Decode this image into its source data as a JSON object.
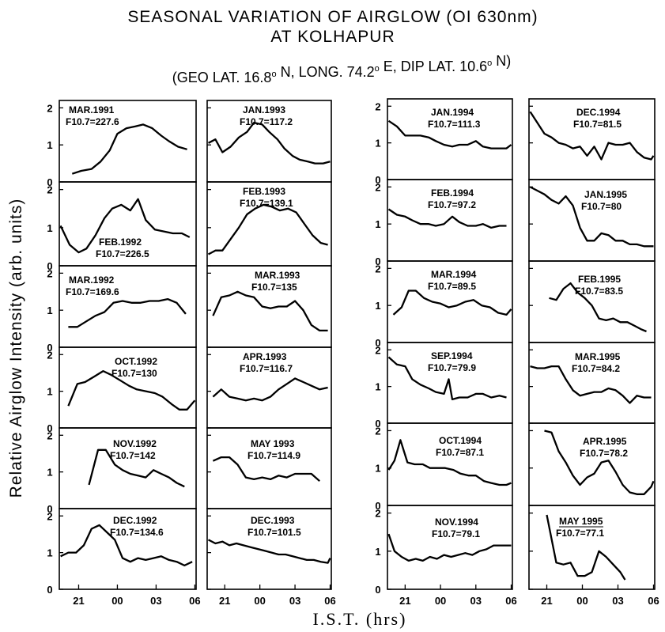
{
  "chart_data": {
    "type": "line",
    "title": "SEASONAL VARIATION OF AIRGLOW (OI 630nm)",
    "title_line2": "AT KOLHAPUR",
    "subtitle_text": "(GEO LAT. 16.8",
    "subtitle_parts": [
      "(GEO LAT. 16.8",
      "o",
      " N,  LONG. 74.2",
      "o",
      " E, DIP LAT. 10.6",
      "o",
      " N)"
    ],
    "ylabel": "Relative Airglow Intensity (arb. units)",
    "xlabel": "I.S.T. (hrs)",
    "ylim": [
      0,
      2.2
    ],
    "xlim_hours_after_18": [
      1.5,
      12.1
    ],
    "x_ticks": [
      "21",
      "00",
      "03",
      "06"
    ],
    "y_ticks": [
      "0",
      "1",
      "2"
    ],
    "grid": false,
    "panels": [
      {
        "col": 0,
        "row": 0,
        "label1": "MAR.1991",
        "label2": "F10.7=227.6",
        "x": [
          2.5,
          3.2,
          4.0,
          4.7,
          5.4,
          6.0,
          6.7,
          7.4,
          8.0,
          8.7,
          9.4,
          10.0,
          10.7,
          11.4
        ],
        "y": [
          0.22,
          0.3,
          0.35,
          0.55,
          0.85,
          1.3,
          1.45,
          1.5,
          1.55,
          1.45,
          1.25,
          1.1,
          0.95,
          0.88
        ]
      },
      {
        "col": 0,
        "row": 1,
        "label1": "FEB.1992",
        "label2": "F10.7=226.5",
        "x": [
          1.6,
          2.3,
          3.0,
          3.6,
          4.3,
          5.0,
          5.6,
          6.3,
          7.0,
          7.6,
          8.2,
          8.9,
          9.6,
          10.3,
          11.0,
          11.6
        ],
        "y": [
          1.05,
          0.55,
          0.35,
          0.45,
          0.8,
          1.25,
          1.5,
          1.6,
          1.45,
          1.75,
          1.2,
          0.95,
          0.9,
          0.85,
          0.85,
          0.75
        ]
      },
      {
        "col": 0,
        "row": 2,
        "label1": "MAR.1992",
        "label2": "F10.7=169.6",
        "x": [
          2.2,
          2.9,
          3.6,
          4.3,
          5.0,
          5.7,
          6.4,
          7.1,
          7.8,
          8.5,
          9.2,
          9.9,
          10.6,
          11.3
        ],
        "y": [
          0.55,
          0.55,
          0.7,
          0.85,
          0.95,
          1.2,
          1.25,
          1.2,
          1.2,
          1.25,
          1.25,
          1.3,
          1.2,
          0.9
        ]
      },
      {
        "col": 0,
        "row": 3,
        "label1": "OCT.1992",
        "label2": "F10.7=130",
        "x": [
          2.2,
          2.9,
          3.5,
          4.2,
          4.9,
          5.5,
          6.2,
          6.9,
          7.5,
          8.2,
          8.9,
          9.5,
          10.2,
          10.8,
          11.4,
          12.0
        ],
        "y": [
          0.6,
          1.2,
          1.25,
          1.4,
          1.55,
          1.45,
          1.3,
          1.15,
          1.05,
          1.0,
          0.95,
          0.85,
          0.65,
          0.5,
          0.5,
          0.75
        ]
      },
      {
        "col": 0,
        "row": 4,
        "label1": "NOV.1992",
        "label2": "F10.7=142",
        "x": [
          3.8,
          4.5,
          5.1,
          5.8,
          6.4,
          7.0,
          7.6,
          8.2,
          8.8,
          9.4,
          10.0,
          10.6,
          11.2
        ],
        "y": [
          0.65,
          1.6,
          1.6,
          1.2,
          1.05,
          0.95,
          0.9,
          0.85,
          1.05,
          0.95,
          0.85,
          0.7,
          0.6
        ]
      },
      {
        "col": 0,
        "row": 5,
        "label1": "DEC.1992",
        "label2": "F10.7=134.6",
        "x": [
          1.6,
          2.2,
          2.8,
          3.4,
          4.0,
          4.6,
          5.2,
          5.8,
          6.4,
          7.0,
          7.6,
          8.2,
          8.8,
          9.4,
          10.0,
          10.6,
          11.2,
          11.8
        ],
        "y": [
          0.9,
          1.0,
          1.0,
          1.2,
          1.65,
          1.75,
          1.55,
          1.35,
          0.85,
          0.75,
          0.85,
          0.8,
          0.85,
          0.9,
          0.8,
          0.75,
          0.65,
          0.75
        ]
      },
      {
        "col": 1,
        "row": 0,
        "label1": "JAN.1993",
        "label2": "F10.7=117.2",
        "x": [
          1.6,
          2.2,
          2.8,
          3.5,
          4.2,
          4.9,
          5.5,
          6.2,
          6.8,
          7.5,
          8.1,
          8.8,
          9.4,
          10.1,
          10.7,
          11.4,
          12.0
        ],
        "y": [
          1.05,
          1.15,
          0.8,
          0.95,
          1.2,
          1.35,
          1.6,
          1.55,
          1.35,
          1.15,
          0.9,
          0.7,
          0.6,
          0.55,
          0.5,
          0.5,
          0.55
        ]
      },
      {
        "col": 1,
        "row": 1,
        "label1": "FEB.1993",
        "label2": "F10.7=139.1",
        "x": [
          1.6,
          2.2,
          2.8,
          3.5,
          4.2,
          4.9,
          5.6,
          6.3,
          7.0,
          7.7,
          8.4,
          9.1,
          9.8,
          10.5,
          11.2,
          11.8
        ],
        "y": [
          0.3,
          0.4,
          0.4,
          0.7,
          1.0,
          1.35,
          1.5,
          1.6,
          1.55,
          1.45,
          1.5,
          1.4,
          1.1,
          0.8,
          0.6,
          0.55
        ]
      },
      {
        "col": 1,
        "row": 2,
        "label1": "MAR.1993",
        "label2": "F10.7=135",
        "x": [
          2.0,
          2.7,
          3.4,
          4.1,
          4.8,
          5.5,
          6.2,
          6.9,
          7.6,
          8.3,
          9.0,
          9.7,
          10.4,
          11.1,
          11.8
        ],
        "y": [
          0.85,
          1.35,
          1.4,
          1.5,
          1.4,
          1.35,
          1.1,
          1.05,
          1.1,
          1.1,
          1.25,
          1.0,
          0.6,
          0.45,
          0.45
        ]
      },
      {
        "col": 1,
        "row": 3,
        "label1": "APR.1993",
        "label2": "F10.7=116.7",
        "x": [
          2.0,
          2.7,
          3.4,
          4.1,
          4.8,
          5.5,
          6.2,
          6.9,
          7.6,
          8.3,
          9.0,
          9.7,
          10.4,
          11.1,
          11.8
        ],
        "y": [
          0.85,
          1.05,
          0.85,
          0.8,
          0.75,
          0.8,
          0.75,
          0.85,
          1.05,
          1.2,
          1.35,
          1.25,
          1.15,
          1.05,
          1.1
        ]
      },
      {
        "col": 1,
        "row": 4,
        "label1": "MAY 1993",
        "label2": "F10.7=114.9",
        "x": [
          2.0,
          2.7,
          3.4,
          4.1,
          4.8,
          5.5,
          6.2,
          6.9,
          7.6,
          8.3,
          9.0,
          9.7,
          10.4,
          11.1
        ],
        "y": [
          1.3,
          1.4,
          1.4,
          1.2,
          0.85,
          0.8,
          0.85,
          0.8,
          0.9,
          0.85,
          0.95,
          0.95,
          0.95,
          0.75
        ]
      },
      {
        "col": 1,
        "row": 5,
        "label1": "DEC.1993",
        "label2": "F10.7=101.5",
        "x": [
          1.6,
          2.2,
          2.8,
          3.4,
          4.0,
          4.6,
          5.2,
          5.8,
          6.4,
          7.0,
          7.6,
          8.2,
          8.8,
          9.4,
          10.0,
          10.6,
          11.2,
          11.8,
          12.0
        ],
        "y": [
          1.35,
          1.25,
          1.3,
          1.2,
          1.25,
          1.2,
          1.15,
          1.1,
          1.05,
          1.0,
          0.95,
          0.95,
          0.9,
          0.85,
          0.8,
          0.8,
          0.75,
          0.72,
          0.85
        ]
      },
      {
        "col": 2,
        "row": 0,
        "label1": "JAN.1994",
        "label2": "F10.7=111.3",
        "x": [
          1.6,
          2.3,
          3.0,
          3.6,
          4.3,
          5.0,
          5.6,
          6.3,
          7.0,
          7.6,
          8.3,
          9.0,
          9.6,
          10.3,
          11.0,
          11.6,
          12.0
        ],
        "y": [
          1.6,
          1.45,
          1.2,
          1.2,
          1.2,
          1.15,
          1.05,
          0.95,
          0.9,
          0.95,
          0.95,
          1.05,
          0.9,
          0.85,
          0.85,
          0.85,
          0.95
        ]
      },
      {
        "col": 2,
        "row": 1,
        "label1": "FEB.1994",
        "label2": "F10.7=97.2",
        "x": [
          1.6,
          2.3,
          3.0,
          3.6,
          4.3,
          5.0,
          5.6,
          6.3,
          7.0,
          7.6,
          8.3,
          9.0,
          9.6,
          10.3,
          11.0,
          11.6
        ],
        "y": [
          1.4,
          1.25,
          1.2,
          1.1,
          1.0,
          1.0,
          0.95,
          1.0,
          1.2,
          1.05,
          0.95,
          0.95,
          1.0,
          0.9,
          0.95,
          0.95
        ]
      },
      {
        "col": 2,
        "row": 2,
        "label1": "MAR.1994",
        "label2": "F10.7=89.5",
        "x": [
          2.0,
          2.7,
          3.3,
          3.9,
          4.6,
          5.3,
          6.0,
          6.7,
          7.4,
          8.1,
          8.8,
          9.5,
          10.2,
          10.9,
          11.6,
          12.0
        ],
        "y": [
          0.75,
          0.95,
          1.4,
          1.4,
          1.2,
          1.1,
          1.05,
          0.95,
          1.0,
          1.1,
          1.15,
          1.0,
          0.95,
          0.8,
          0.75,
          0.9
        ]
      },
      {
        "col": 2,
        "row": 3,
        "label1": "SEP.1994",
        "label2": "F10.7=79.9",
        "x": [
          1.6,
          2.3,
          3.0,
          3.6,
          4.3,
          5.0,
          5.6,
          6.3,
          6.7,
          7.0,
          7.6,
          8.3,
          9.0,
          9.6,
          10.3,
          11.0,
          11.6
        ],
        "y": [
          1.8,
          1.6,
          1.55,
          1.2,
          1.05,
          0.95,
          0.85,
          0.8,
          1.2,
          0.65,
          0.7,
          0.7,
          0.8,
          0.8,
          0.7,
          0.75,
          0.7
        ]
      },
      {
        "col": 2,
        "row": 4,
        "label1": "OCT.1994",
        "label2": "F10.7=87.1",
        "x": [
          1.6,
          2.1,
          2.6,
          3.2,
          3.8,
          4.5,
          5.1,
          5.8,
          6.4,
          7.1,
          7.7,
          8.4,
          9.0,
          9.7,
          10.3,
          11.0,
          11.6,
          12.0
        ],
        "y": [
          0.95,
          1.2,
          1.75,
          1.15,
          1.1,
          1.1,
          1.0,
          1.0,
          1.0,
          0.95,
          0.85,
          0.8,
          0.8,
          0.65,
          0.6,
          0.55,
          0.55,
          0.6
        ]
      },
      {
        "col": 2,
        "row": 5,
        "label1": "NOV.1994",
        "label2": "F10.7=79.1",
        "x": [
          1.6,
          2.1,
          2.7,
          3.3,
          3.9,
          4.5,
          5.1,
          5.7,
          6.3,
          6.9,
          7.5,
          8.1,
          8.7,
          9.3,
          9.9,
          10.5,
          11.1,
          11.7,
          12.0
        ],
        "y": [
          1.45,
          1.0,
          0.85,
          0.75,
          0.8,
          0.75,
          0.85,
          0.8,
          0.9,
          0.85,
          0.9,
          0.95,
          0.9,
          1.0,
          1.05,
          1.15,
          1.15,
          1.15,
          1.15
        ]
      },
      {
        "col": 3,
        "row": 0,
        "label1": "DEC.1994",
        "label2": "F10.7=81.5",
        "x": [
          1.6,
          2.2,
          2.8,
          3.4,
          4.0,
          4.6,
          5.2,
          5.8,
          6.4,
          7.0,
          7.6,
          8.2,
          8.8,
          9.4,
          10.0,
          10.6,
          11.2,
          11.8,
          12.0
        ],
        "y": [
          1.85,
          1.55,
          1.25,
          1.15,
          1.0,
          0.95,
          0.85,
          0.9,
          0.65,
          0.9,
          0.55,
          1.0,
          0.95,
          0.95,
          1.0,
          0.75,
          0.6,
          0.55,
          0.65
        ]
      },
      {
        "col": 3,
        "row": 1,
        "label1": "JAN.1995",
        "label2": "F10.7=80",
        "x": [
          1.6,
          2.2,
          2.8,
          3.4,
          4.0,
          4.6,
          5.2,
          5.8,
          6.4,
          7.0,
          7.6,
          8.2,
          8.8,
          9.4,
          10.0,
          10.6,
          11.2,
          11.8,
          12.0
        ],
        "y": [
          2.0,
          1.9,
          1.8,
          1.65,
          1.55,
          1.75,
          1.5,
          0.9,
          0.55,
          0.55,
          0.75,
          0.7,
          0.55,
          0.55,
          0.45,
          0.45,
          0.4,
          0.4,
          0.4
        ]
      },
      {
        "col": 3,
        "row": 2,
        "label1": "FEB.1995",
        "label2": "F10.7=83.5",
        "x": [
          3.2,
          3.8,
          4.4,
          5.0,
          5.6,
          6.2,
          6.8,
          7.4,
          8.0,
          8.6,
          9.2,
          9.8,
          10.4,
          11.0,
          11.4
        ],
        "y": [
          1.2,
          1.15,
          1.45,
          1.6,
          1.35,
          1.2,
          1.0,
          0.65,
          0.6,
          0.65,
          0.55,
          0.55,
          0.45,
          0.35,
          0.3
        ]
      },
      {
        "col": 3,
        "row": 3,
        "label1": "MAR.1995",
        "label2": "F10.7=84.2",
        "x": [
          1.6,
          2.2,
          2.8,
          3.4,
          4.0,
          4.6,
          5.2,
          5.8,
          6.4,
          7.0,
          7.6,
          8.2,
          8.8,
          9.4,
          10.0,
          10.6,
          11.2,
          11.8
        ],
        "y": [
          1.55,
          1.5,
          1.5,
          1.55,
          1.55,
          1.2,
          0.9,
          0.75,
          0.8,
          0.85,
          0.85,
          0.95,
          0.9,
          0.75,
          0.55,
          0.75,
          0.7,
          0.7
        ]
      },
      {
        "col": 3,
        "row": 4,
        "label1": "APR.1995",
        "label2": "F10.7=78.2",
        "x": [
          2.8,
          3.4,
          4.0,
          4.6,
          5.2,
          5.8,
          6.4,
          7.0,
          7.6,
          8.2,
          8.8,
          9.4,
          10.0,
          10.6,
          11.2,
          11.8,
          12.0
        ],
        "y": [
          2.0,
          1.95,
          1.45,
          1.15,
          0.8,
          0.55,
          0.75,
          0.85,
          1.15,
          1.2,
          0.9,
          0.55,
          0.35,
          0.3,
          0.3,
          0.5,
          0.65
        ]
      },
      {
        "col": 3,
        "row": 5,
        "label1": "MAY 1995",
        "label2": "F10.7=77.1",
        "x": [
          3.0,
          3.8,
          4.4,
          5.0,
          5.6,
          6.2,
          6.8,
          7.4,
          8.0,
          8.6,
          9.2,
          9.6
        ],
        "y": [
          1.95,
          0.7,
          0.65,
          0.7,
          0.35,
          0.35,
          0.45,
          1.0,
          0.85,
          0.65,
          0.45,
          0.25
        ]
      }
    ]
  }
}
